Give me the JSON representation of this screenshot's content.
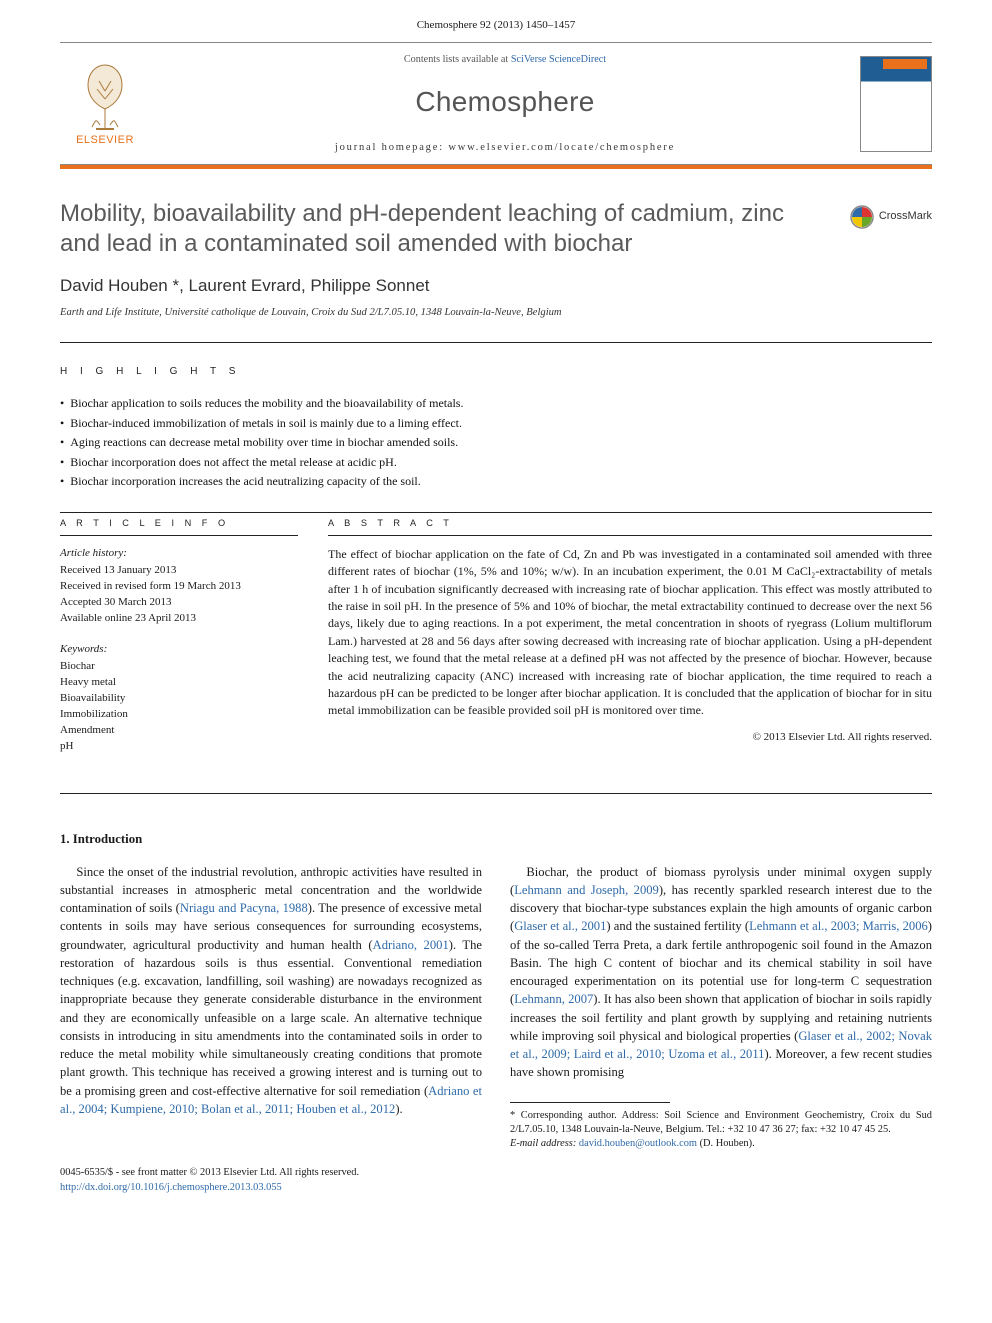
{
  "journal": {
    "citation": "Chemosphere 92 (2013) 1450–1457",
    "contents_prefix": "Contents lists available at ",
    "contents_link": "SciVerse ScienceDirect",
    "name": "Chemosphere",
    "homepage_label": "journal homepage: ",
    "homepage_url": "www.elsevier.com/locate/chemosphere",
    "publisher": "ELSEVIER"
  },
  "crossmark": "CrossMark",
  "title": "Mobility, bioavailability and pH-dependent leaching of cadmium, zinc and lead in a contaminated soil amended with biochar",
  "authors": "David Houben *, Laurent Evrard, Philippe Sonnet",
  "affiliation": "Earth and Life Institute, Université catholique de Louvain, Croix du Sud 2/L7.05.10, 1348 Louvain-la-Neuve, Belgium",
  "highlights_label": "H I G H L I G H T S",
  "highlights": [
    "Biochar application to soils reduces the mobility and the bioavailability of metals.",
    "Biochar-induced immobilization of metals in soil is mainly due to a liming effect.",
    "Aging reactions can decrease metal mobility over time in biochar amended soils.",
    "Biochar incorporation does not affect the metal release at acidic pH.",
    "Biochar incorporation increases the acid neutralizing capacity of the soil."
  ],
  "article_info": {
    "label": "A R T I C L E   I N F O",
    "history_label": "Article history:",
    "history": [
      "Received 13 January 2013",
      "Received in revised form 19 March 2013",
      "Accepted 30 March 2013",
      "Available online 23 April 2013"
    ],
    "keywords_label": "Keywords:",
    "keywords": [
      "Biochar",
      "Heavy metal",
      "Bioavailability",
      "Immobilization",
      "Amendment",
      "pH"
    ]
  },
  "abstract": {
    "label": "A B S T R A C T",
    "text": "The effect of biochar application on the fate of Cd, Zn and Pb was investigated in a contaminated soil amended with three different rates of biochar (1%, 5% and 10%; w/w). In an incubation experiment, the 0.01 M CaCl₂-extractability of metals after 1 h of incubation significantly decreased with increasing rate of biochar application. This effect was mostly attributed to the raise in soil pH. In the presence of 5% and 10% of biochar, the metal extractability continued to decrease over the next 56 days, likely due to aging reactions. In a pot experiment, the metal concentration in shoots of ryegrass (Lolium multiflorum Lam.) harvested at 28 and 56 days after sowing decreased with increasing rate of biochar application. Using a pH-dependent leaching test, we found that the metal release at a defined pH was not affected by the presence of biochar. However, because the acid neutralizing capacity (ANC) increased with increasing rate of biochar application, the time required to reach a hazardous pH can be predicted to be longer after biochar application. It is concluded that the application of biochar for in situ metal immobilization can be feasible provided soil pH is monitored over time.",
    "copyright": "© 2013 Elsevier Ltd. All rights reserved."
  },
  "intro": {
    "heading": "1. Introduction",
    "p1a": "Since the onset of the industrial revolution, anthropic activities have resulted in substantial increases in atmospheric metal concentration and the worldwide contamination of soils (",
    "p1_link1": "Nriagu and Pacyna, 1988",
    "p1b": "). The presence of excessive metal contents in soils may have serious consequences for surrounding ecosystems, groundwater, agricultural productivity and human health (",
    "p1_link2": "Adriano, 2001",
    "p1c": "). The restoration of hazardous soils is thus essential. Conventional remediation techniques (e.g. excavation, landfilling, soil washing) are nowadays recognized as inappropriate because they generate considerable disturbance in the environment and they are economically unfeasible on a large scale. An alternative technique consists in introducing in situ amendments into the contaminated soils in order to reduce the metal mobility while simultaneously creating conditions that promote plant growth. This technique has received a growing interest and is turning out to be a promising green and cost-effective alternative for soil remediation (",
    "p1_link3": "Adriano et al., 2004; Kumpiene, 2010; Bolan et al., 2011; Houben et al., 2012",
    "p1d": ").",
    "p2a": "Biochar, the product of biomass pyrolysis under minimal oxygen supply (",
    "p2_link1": "Lehmann and Joseph, 2009",
    "p2b": "), has recently sparkled research interest due to the discovery that biochar-type substances explain the high amounts of organic carbon (",
    "p2_link2": "Glaser et al., 2001",
    "p2c": ") and the sustained fertility (",
    "p2_link3": "Lehmann et al., 2003; Marris, 2006",
    "p2d": ") of the so-called Terra Preta, a dark fertile anthropogenic soil found in the Amazon Basin. The high C content of biochar and its chemical stability in soil have encouraged experimentation on its potential use for long-term C sequestration (",
    "p2_link4": "Lehmann, 2007",
    "p2e": "). It has also been shown that application of biochar in soils rapidly increases the soil fertility and plant growth by supplying and retaining nutrients while improving soil physical and biological properties (",
    "p2_link5": "Glaser et al., 2002; Novak et al., 2009; Laird et al., 2010; Uzoma et al., 2011",
    "p2f": "). Moreover, a few recent studies have shown promising"
  },
  "footnotes": {
    "corr": "* Corresponding author. Address: Soil Science and Environment Geochemistry, Croix du Sud 2/L7.05.10, 1348 Louvain-la-Neuve, Belgium. Tel.: +32 10 47 36 27; fax: +32 10 47 45 25.",
    "email_label": "E-mail address: ",
    "email": "david.houben@outlook.com",
    "email_suffix": " (D. Houben)."
  },
  "footer": {
    "line1": "0045-6535/$ - see front matter © 2013 Elsevier Ltd. All rights reserved.",
    "doi": "http://dx.doi.org/10.1016/j.chemosphere.2013.03.055"
  },
  "colors": {
    "accent": "#e9711c",
    "link": "#2f6aa8",
    "title_grey": "#5a5a5a"
  }
}
